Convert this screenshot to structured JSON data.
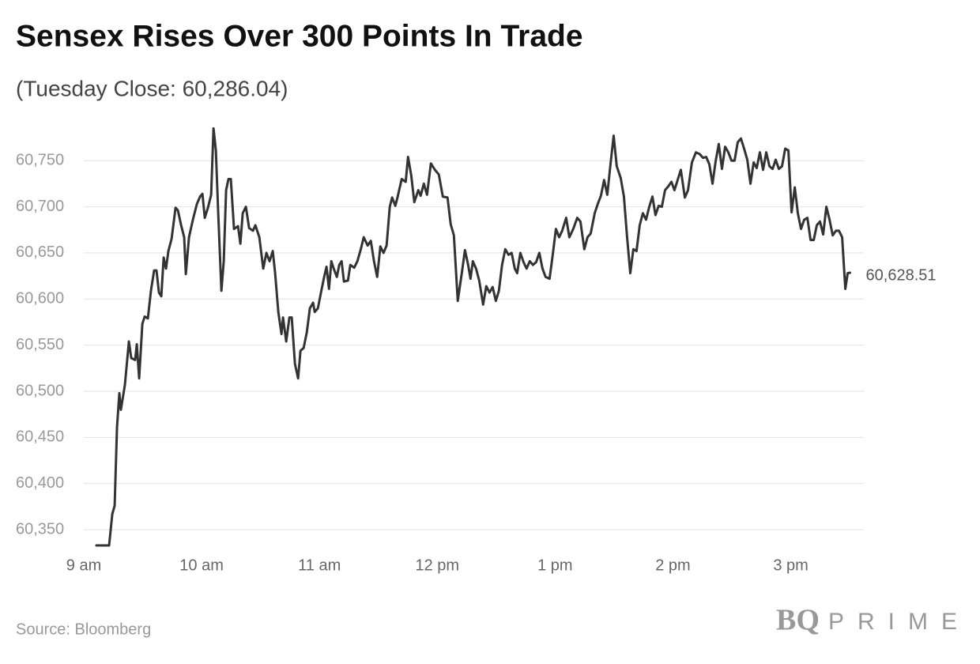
{
  "chart_data": {
    "type": "line",
    "title": "Sensex Rises Over 300 Points In Trade",
    "subtitle": "(Tuesday Close: 60,286.04)",
    "source": "Source: Bloomberg",
    "brand": {
      "mark": "BQ",
      "name": "PRIME"
    },
    "color": "#333333",
    "grid": true,
    "xlim": [
      9,
      15.62
    ],
    "xticks": [
      {
        "value": 9,
        "label": "9 am"
      },
      {
        "value": 10,
        "label": "10 am"
      },
      {
        "value": 11,
        "label": "11 am"
      },
      {
        "value": 12,
        "label": "12 pm"
      },
      {
        "value": 13,
        "label": "1 pm"
      },
      {
        "value": 14,
        "label": "2 pm"
      },
      {
        "value": 15,
        "label": "3 pm"
      }
    ],
    "ylim": [
      60333,
      60787
    ],
    "yticks": [
      {
        "value": 60350,
        "label": "60,350"
      },
      {
        "value": 60400,
        "label": "60,400"
      },
      {
        "value": 60450,
        "label": "60,450"
      },
      {
        "value": 60500,
        "label": "60,500"
      },
      {
        "value": 60550,
        "label": "60,550"
      },
      {
        "value": 60600,
        "label": "60,600"
      },
      {
        "value": 60650,
        "label": "60,650"
      },
      {
        "value": 60700,
        "label": "60,700"
      },
      {
        "value": 60750,
        "label": "60,750"
      }
    ],
    "x": [
      9.107,
      9.215,
      9.242,
      9.262,
      9.282,
      9.302,
      9.315,
      9.349,
      9.383,
      9.403,
      9.436,
      9.45,
      9.47,
      9.497,
      9.517,
      9.544,
      9.57,
      9.597,
      9.617,
      9.638,
      9.658,
      9.678,
      9.698,
      9.718,
      9.745,
      9.779,
      9.799,
      9.826,
      9.852,
      9.866,
      9.893,
      9.926,
      9.96,
      9.987,
      10.007,
      10.027,
      10.054,
      10.081,
      10.101,
      10.121,
      10.141,
      10.168,
      10.188,
      10.208,
      10.228,
      10.248,
      10.275,
      10.309,
      10.329,
      10.349,
      10.376,
      10.403,
      10.436,
      10.456,
      10.49,
      10.523,
      10.55,
      10.577,
      10.604,
      10.624,
      10.651,
      10.678,
      10.691,
      10.718,
      10.745,
      10.765,
      10.792,
      10.819,
      10.839,
      10.866,
      10.893,
      10.919,
      10.946,
      10.96,
      10.987,
      11.013,
      11.04,
      11.06,
      11.081,
      11.101,
      11.121,
      11.148,
      11.168,
      11.188,
      11.208,
      11.242,
      11.262,
      11.295,
      11.322,
      11.349,
      11.376,
      11.409,
      11.436,
      11.463,
      11.49,
      11.517,
      11.544,
      11.57,
      11.597,
      11.617,
      11.644,
      11.664,
      11.698,
      11.732,
      11.752,
      11.779,
      11.805,
      11.839,
      11.859,
      11.886,
      11.913,
      11.946,
      11.98,
      12.013,
      12.047,
      12.087,
      12.114,
      12.141,
      12.174,
      12.208,
      12.235,
      12.262,
      12.282,
      12.302,
      12.329,
      12.356,
      12.389,
      12.416,
      12.443,
      12.47,
      12.497,
      12.523,
      12.55,
      12.577,
      12.604,
      12.631,
      12.658,
      12.678,
      12.705,
      12.732,
      12.758,
      12.785,
      12.812,
      12.839,
      12.866,
      12.893,
      12.919,
      12.953,
      12.98,
      13.007,
      13.034,
      13.06,
      13.094,
      13.121,
      13.154,
      13.188,
      13.215,
      13.248,
      13.275,
      13.302,
      13.336,
      13.362,
      13.389,
      13.416,
      13.443,
      13.47,
      13.497,
      13.523,
      13.557,
      13.584,
      13.611,
      13.638,
      13.664,
      13.691,
      13.718,
      13.745,
      13.772,
      13.799,
      13.826,
      13.852,
      13.879,
      13.906,
      13.933,
      13.96,
      13.987,
      14.013,
      14.04,
      14.067,
      14.101,
      14.128,
      14.161,
      14.195,
      14.228,
      14.255,
      14.282,
      14.309,
      14.336,
      14.362,
      14.389,
      14.416,
      14.443,
      14.47,
      14.497,
      14.523,
      14.55,
      14.577,
      14.604,
      14.631,
      14.658,
      14.685,
      14.711,
      14.738,
      14.765,
      14.792,
      14.819,
      14.846,
      14.872,
      14.899,
      14.926,
      14.953,
      14.98,
      15.007,
      15.034,
      15.06,
      15.087,
      15.114,
      15.141,
      15.168,
      15.195,
      15.221,
      15.248,
      15.275,
      15.302,
      15.329,
      15.356,
      15.383,
      15.409,
      15.436,
      15.463,
      15.483,
      15.503
    ],
    "values": [
      60333,
      60333,
      60367,
      60376,
      60461,
      60498,
      60480,
      60507,
      60554,
      60536,
      60534,
      60551,
      60514,
      60573,
      60581,
      60579,
      60609,
      60631,
      60631,
      60607,
      60603,
      60645,
      60633,
      60652,
      60665,
      60699,
      60696,
      60680,
      60667,
      60627,
      60667,
      60686,
      60703,
      60711,
      60714,
      60688,
      60699,
      60713,
      60785,
      60761,
      60693,
      60609,
      60641,
      60718,
      60730,
      60730,
      60676,
      60679,
      60660,
      60693,
      60700,
      60677,
      60674,
      60680,
      60667,
      60633,
      60650,
      60641,
      60652,
      60628,
      60586,
      60562,
      60580,
      60554,
      60580,
      60580,
      60530,
      60514,
      60544,
      60547,
      60564,
      60590,
      60596,
      60586,
      60590,
      60607,
      60624,
      60635,
      60611,
      60641,
      60633,
      60624,
      60637,
      60641,
      60619,
      60620,
      60637,
      60634,
      60641,
      60653,
      60667,
      60658,
      60663,
      60641,
      60624,
      60657,
      60650,
      60658,
      60700,
      60710,
      60701,
      60711,
      60730,
      60727,
      60754,
      60734,
      60705,
      60718,
      60712,
      60725,
      60713,
      60747,
      60740,
      60735,
      60711,
      60710,
      60681,
      60669,
      60598,
      60628,
      60653,
      60637,
      60622,
      60641,
      60633,
      60620,
      60594,
      60614,
      60607,
      60613,
      60598,
      60609,
      60637,
      60654,
      60648,
      60650,
      60633,
      60628,
      60650,
      60640,
      60633,
      60641,
      60637,
      60640,
      60650,
      60633,
      60624,
      60622,
      60648,
      60676,
      60667,
      60674,
      60688,
      60667,
      60676,
      60688,
      60684,
      60654,
      60667,
      60671,
      60693,
      60703,
      60712,
      60729,
      60713,
      60746,
      60777,
      60744,
      60731,
      60711,
      60667,
      60628,
      60654,
      60652,
      60680,
      60693,
      60686,
      60700,
      60711,
      60691,
      60701,
      60700,
      60718,
      60722,
      60727,
      60718,
      60729,
      60740,
      60710,
      60718,
      60748,
      60759,
      60757,
      60753,
      60754,
      60746,
      60725,
      60749,
      60768,
      60741,
      60765,
      60759,
      60750,
      60750,
      60770,
      60774,
      60763,
      60751,
      60725,
      60748,
      60742,
      60759,
      60740,
      60759,
      60744,
      60741,
      60751,
      60741,
      60744,
      60763,
      60761,
      60694,
      60721,
      60693,
      60676,
      60686,
      60688,
      60664,
      60664,
      60680,
      60684,
      60670,
      60700,
      60686,
      60669,
      60674,
      60674,
      60667,
      60611,
      60628,
      60628.51
    ],
    "value_labels": [
      null,
      null,
      null,
      null,
      null,
      null,
      null,
      null,
      null,
      null,
      null,
      null,
      null,
      null,
      null,
      null,
      null,
      null,
      null,
      null,
      null,
      null,
      null,
      null,
      null,
      null,
      null,
      null,
      null,
      null,
      null,
      null,
      null,
      null,
      null,
      null,
      null,
      null,
      null,
      null,
      null,
      null,
      null,
      null,
      null,
      null,
      null,
      null,
      null,
      null,
      null,
      null,
      null,
      null,
      null,
      null,
      null,
      null,
      null,
      null,
      null,
      null,
      null,
      null,
      null,
      null,
      null,
      null,
      null,
      null,
      null,
      null,
      null,
      null,
      null,
      null,
      null,
      null,
      null,
      null,
      null,
      null,
      null,
      null,
      null,
      null,
      null,
      null,
      null,
      null,
      null,
      null,
      null,
      null,
      null,
      null,
      null,
      null,
      null,
      null,
      null,
      null,
      null,
      null,
      null,
      null,
      null,
      null,
      null,
      null,
      null,
      null,
      null,
      null,
      null,
      null,
      null,
      null,
      null,
      null,
      null,
      null,
      null,
      null,
      null,
      null,
      null,
      null,
      null,
      null,
      null,
      null,
      null,
      null,
      null,
      null,
      null,
      null,
      null,
      null,
      null,
      null,
      null,
      null,
      null,
      null,
      null,
      null,
      null,
      null,
      null,
      null,
      null,
      null,
      null,
      null,
      null,
      null,
      null,
      null,
      null,
      null,
      null,
      null,
      null,
      null,
      null,
      null,
      null,
      null,
      null,
      null,
      null,
      null,
      null,
      null,
      null,
      null,
      null,
      null,
      null,
      null,
      null,
      null,
      null,
      null,
      null,
      null,
      null,
      null,
      null,
      null,
      null,
      null,
      null,
      null,
      null,
      null,
      null,
      null,
      null,
      null,
      null,
      null,
      null,
      null,
      null,
      null,
      null,
      null,
      null,
      null,
      null,
      null,
      null,
      null,
      null,
      null,
      null,
      null,
      null,
      null,
      null,
      null,
      null,
      null,
      null,
      null,
      null,
      null,
      null,
      null,
      null,
      null,
      null,
      null,
      null,
      null,
      null,
      null,
      "60,628.51"
    ]
  }
}
